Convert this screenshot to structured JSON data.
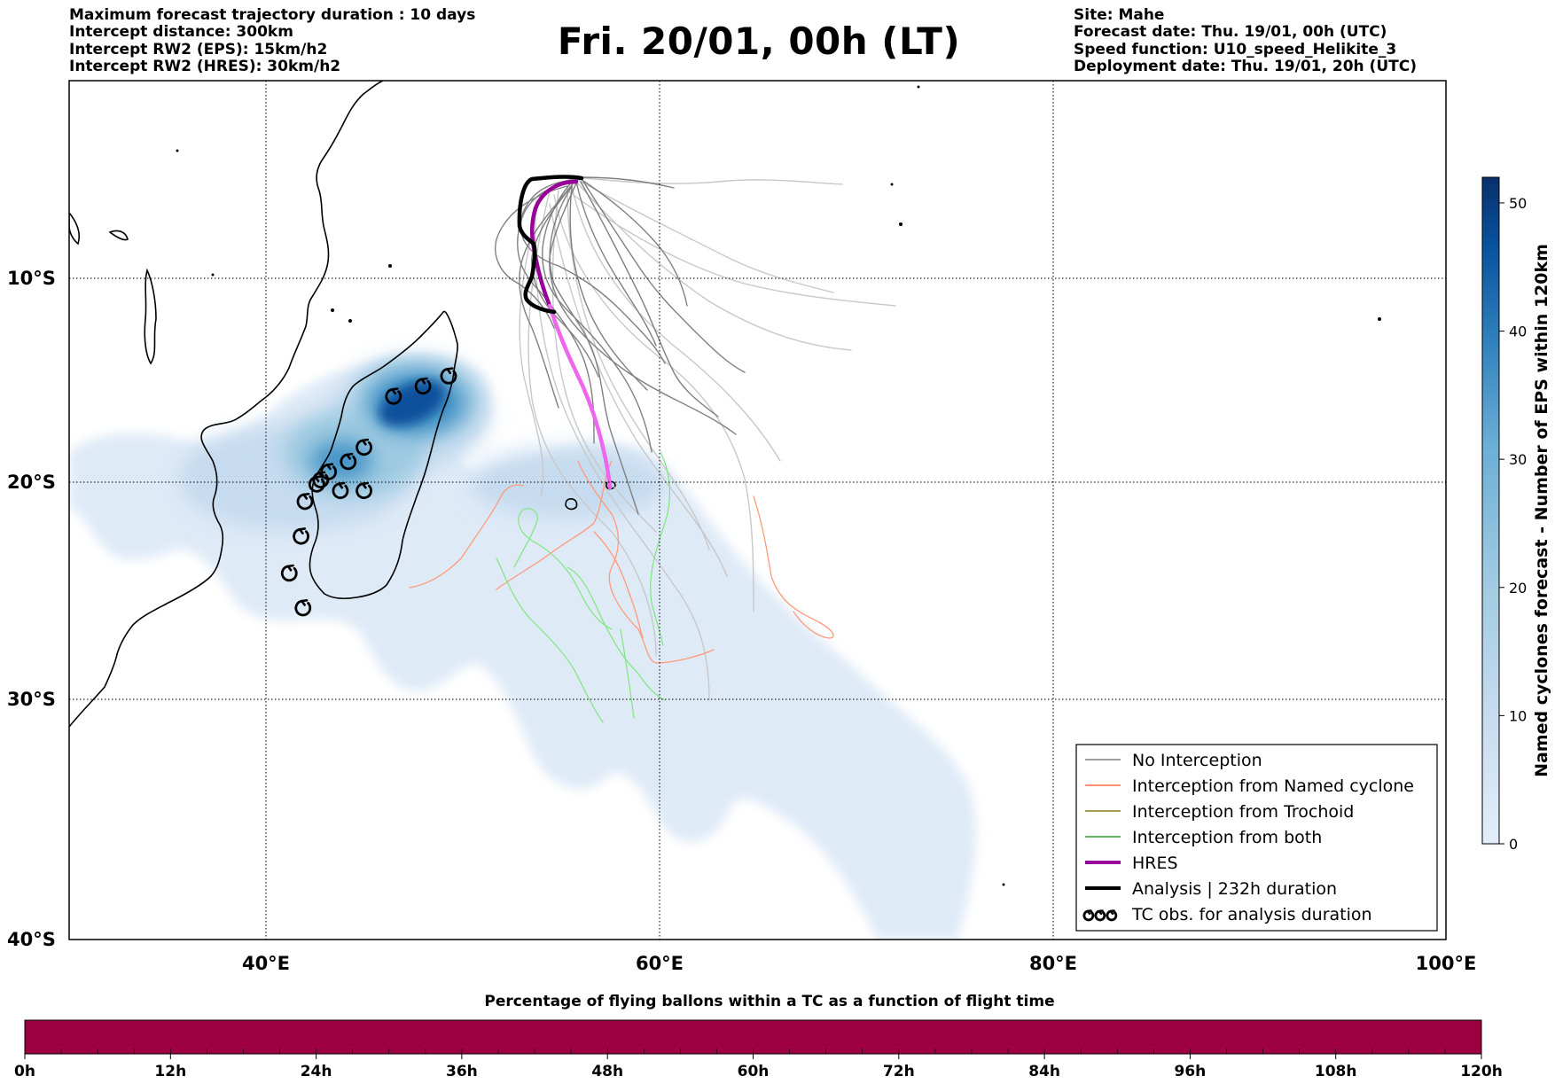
{
  "header": {
    "left_lines": [
      "Maximum forecast trajectory duration : 10 days",
      "Intercept distance: 300km",
      "Intercept RW2 (EPS):  15km/h2",
      "Intercept RW2 (HRES): 30km/h2"
    ],
    "title": "Fri. 20/01, 00h (LT)",
    "right_lines": [
      "Site: Mahe",
      "Forecast date: Thu. 19/01, 00h (UTC)",
      "Speed function: U10_speed_Helikite_3",
      "Deployment date: Thu. 19/01, 20h (UTC)"
    ]
  },
  "map": {
    "lat_labels": [
      "10°S",
      "20°S",
      "30°S",
      "40°S"
    ],
    "lon_labels": [
      "40°E",
      "60°E",
      "80°E",
      "100°E"
    ],
    "lon_range": [
      30,
      100
    ],
    "lat_range": [
      -40,
      0
    ],
    "grid": true,
    "grid_style": "dotted"
  },
  "legend": {
    "placement": "lower-right",
    "items": [
      {
        "label": "No Interception",
        "color": "#808080",
        "kind": "line"
      },
      {
        "label": "Interception from Named cyclone",
        "color": "#ff6a3d",
        "kind": "line"
      },
      {
        "label": "Interception from Trochoid",
        "color": "#8b7f1a",
        "kind": "line"
      },
      {
        "label": "Interception from both",
        "color": "#2ca02c",
        "kind": "line"
      },
      {
        "label": "HRES",
        "color": "#990099",
        "kind": "thick-line"
      },
      {
        "label": "Analysis | 232h duration",
        "color": "#000000",
        "kind": "thick-line"
      },
      {
        "label": "TC obs. for analysis duration",
        "color": "#000000",
        "kind": "cyclone-symbols"
      }
    ]
  },
  "colorbar_right": {
    "label": "Named cyclones forecast - Number of EPS within 120km",
    "ticks": [
      "0",
      "10",
      "20",
      "30",
      "40",
      "50"
    ],
    "colors": [
      "#e3eef9",
      "#c6dbef",
      "#9ecae1",
      "#6baed6",
      "#3182bd",
      "#08519c",
      "#08306b"
    ]
  },
  "colorbar_bottom": {
    "title": "Percentage of flying ballons within a TC as a function of flight time",
    "ticks": [
      "0h",
      "12h",
      "24h",
      "36h",
      "48h",
      "60h",
      "72h",
      "84h",
      "96h",
      "108h",
      "120h"
    ],
    "fill_color": "#9e0142"
  },
  "chart_data": {
    "type": "map",
    "title": "Fri. 20/01, 00h (LT)",
    "site": "Mahe",
    "analysis_track": [
      [
        56.0,
        -5.0
      ],
      [
        54.8,
        -5.0
      ],
      [
        53.4,
        -5.2
      ],
      [
        53.0,
        -7.0
      ],
      [
        53.2,
        -8.0
      ],
      [
        54.0,
        -8.6
      ],
      [
        54.0,
        -9.6
      ],
      [
        53.0,
        -10.5
      ],
      [
        53.4,
        -11.2
      ],
      [
        54.5,
        -11.8
      ],
      [
        55.0,
        -11.8
      ]
    ],
    "hres_track": [
      [
        56.0,
        -5.0
      ],
      [
        54.5,
        -5.6
      ],
      [
        53.8,
        -7.0
      ],
      [
        54.2,
        -9.0
      ],
      [
        54.8,
        -11.5
      ],
      [
        55.5,
        -13.5
      ],
      [
        56.3,
        -15.5
      ],
      [
        57.0,
        -17.5
      ],
      [
        57.5,
        -20.2
      ]
    ],
    "tc_observations": [
      [
        49.3,
        -14.8
      ],
      [
        48.0,
        -15.3
      ],
      [
        46.5,
        -15.8
      ],
      [
        45.0,
        -18.3
      ],
      [
        44.2,
        -19.0
      ],
      [
        43.2,
        -19.5
      ],
      [
        42.8,
        -19.9
      ],
      [
        42.6,
        -20.1
      ],
      [
        45.0,
        -20.4
      ],
      [
        43.8,
        -20.4
      ],
      [
        42.0,
        -20.9
      ],
      [
        41.8,
        -22.5
      ],
      [
        41.2,
        -24.2
      ],
      [
        41.9,
        -25.8
      ]
    ],
    "tc_density_peak": {
      "lon": 47.0,
      "lat": -16.3,
      "value": 52
    },
    "colorbar_range": [
      0,
      52
    ],
    "percentage_by_flight_time_hours": [
      0,
      12,
      24,
      36,
      48,
      60,
      72,
      84,
      96,
      108,
      120
    ]
  }
}
